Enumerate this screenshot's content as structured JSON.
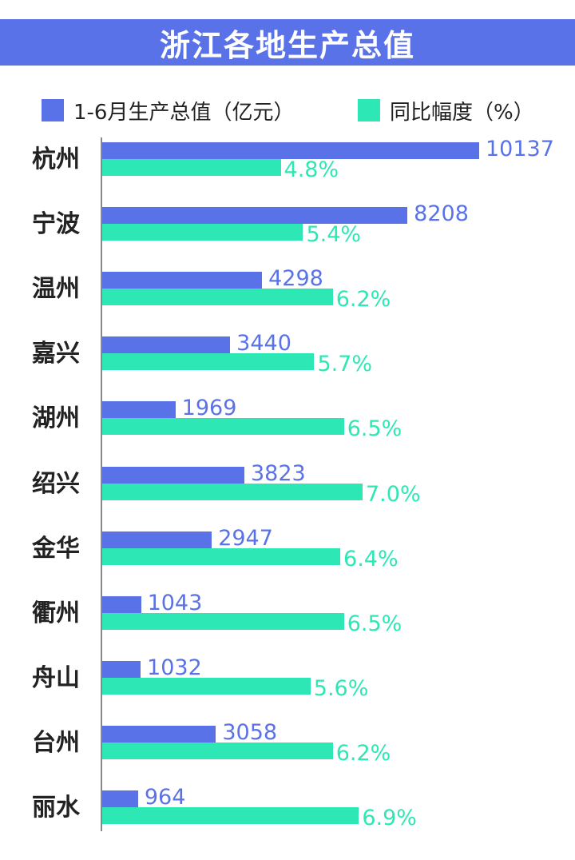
{
  "colors": {
    "title_band": "#5a72e8",
    "series_value": "#5a72e8",
    "series_growth": "#2de8b4",
    "text": "#222222"
  },
  "chart_data": {
    "type": "bar",
    "orientation": "horizontal",
    "title": "浙江各地生产总值",
    "categories": [
      "杭州",
      "宁波",
      "温州",
      "嘉兴",
      "湖州",
      "绍兴",
      "金华",
      "衢州",
      "舟山",
      "台州",
      "丽水"
    ],
    "series": [
      {
        "name": "1-6月生产总值（亿元）",
        "values": [
          10137,
          8208,
          4298,
          3440,
          1969,
          3823,
          2947,
          1043,
          1032,
          3058,
          964
        ],
        "labels": [
          "10137",
          "8208",
          "4298",
          "3440",
          "1969",
          "3823",
          "2947",
          "1043",
          "1032",
          "3058",
          "964"
        ]
      },
      {
        "name": "同比幅度（%）",
        "values": [
          4.8,
          5.4,
          6.2,
          5.7,
          6.5,
          7.0,
          6.4,
          6.5,
          5.6,
          6.2,
          6.9
        ],
        "labels": [
          "4.8%",
          "5.4%",
          "6.2%",
          "5.7%",
          "6.5%",
          "7.0%",
          "6.4%",
          "6.5%",
          "5.6%",
          "6.2%",
          "6.9%"
        ]
      }
    ],
    "legend_position": "top",
    "grid": false
  }
}
